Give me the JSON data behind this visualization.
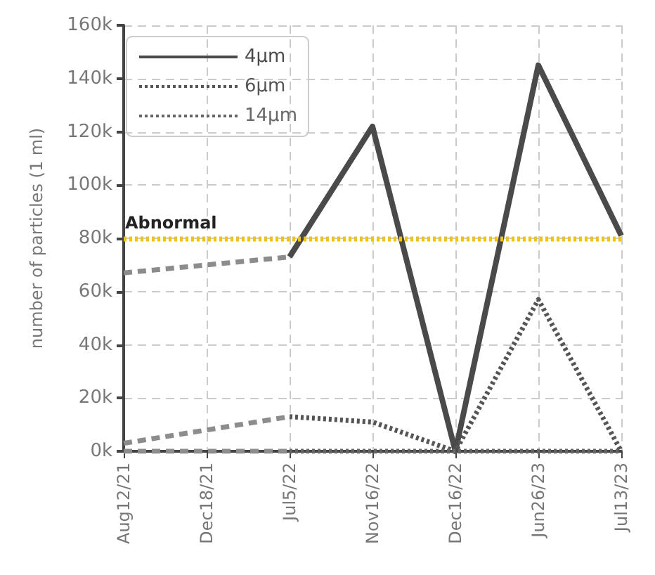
{
  "chart_data": {
    "type": "line",
    "ylabel": "number of particles (1 ml)",
    "categories": [
      "Aug12/21",
      "Dec18/21",
      "Jul5/22",
      "Nov16/22",
      "Dec16/22",
      "Jun26/23",
      "Jul13/23"
    ],
    "series": [
      {
        "name": "4μm",
        "color": "#4a4a4a",
        "line_style": "solid",
        "values": [
          null,
          null,
          73000,
          122000,
          0,
          145000,
          81000
        ]
      },
      {
        "name": "6μm",
        "color": "#555555",
        "line_style": "dotted",
        "values": [
          null,
          null,
          13000,
          11000,
          0,
          57000,
          0
        ]
      },
      {
        "name": "14μm",
        "color": "#666666",
        "line_style": "dotted",
        "values": [
          null,
          null,
          0,
          0,
          0,
          0,
          0
        ]
      },
      {
        "color": "#8c8c8c",
        "line_style": "dashed",
        "values": [
          67000,
          null,
          73000,
          null,
          null,
          null,
          null
        ]
      },
      {
        "color": "#8c8c8c",
        "line_style": "dashed",
        "values": [
          3000,
          null,
          13000,
          null,
          null,
          null,
          null
        ]
      },
      {
        "color": "#8c8c8c",
        "line_style": "dashed",
        "values": [
          0,
          null,
          0,
          null,
          null,
          null,
          null
        ]
      }
    ],
    "ylim": [
      0,
      160000
    ],
    "yticks": [
      {
        "value": 0,
        "label": "0k"
      },
      {
        "value": 20000,
        "label": "20k"
      },
      {
        "value": 40000,
        "label": "40k"
      },
      {
        "value": 60000,
        "label": "60k"
      },
      {
        "value": 80000,
        "label": "80k"
      },
      {
        "value": 100000,
        "label": "100k"
      },
      {
        "value": 120000,
        "label": "120k"
      },
      {
        "value": 140000,
        "label": "140k"
      },
      {
        "value": 160000,
        "label": "160k"
      }
    ],
    "ref_lines": [
      {
        "axis": "y",
        "value": 80000,
        "label": "Abnormal",
        "color": "#f5c400",
        "line_style": "dotted"
      }
    ],
    "grid": true,
    "legend": "top left",
    "marker": "none"
  }
}
